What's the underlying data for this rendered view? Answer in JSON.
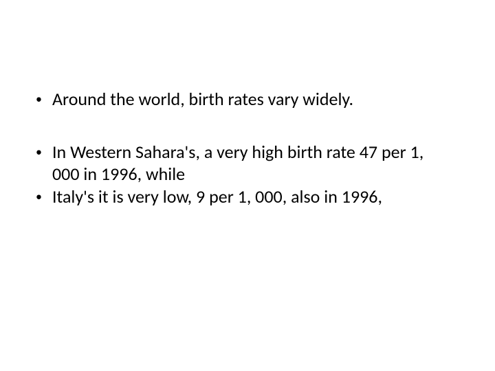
{
  "slide": {
    "background_color": "#ffffff",
    "text_color": "#000000",
    "font_family": "Calibri",
    "bullet_groups": [
      {
        "items": [
          {
            "text": "Around the world, birth rates vary widely."
          }
        ]
      },
      {
        "items": [
          {
            "text": "In Western Sahara's, a very high birth rate 47 per 1, 000 in 1996, while"
          },
          {
            "text": "Italy's it is very low, 9 per 1, 000, also in 1996,"
          }
        ]
      }
    ]
  }
}
